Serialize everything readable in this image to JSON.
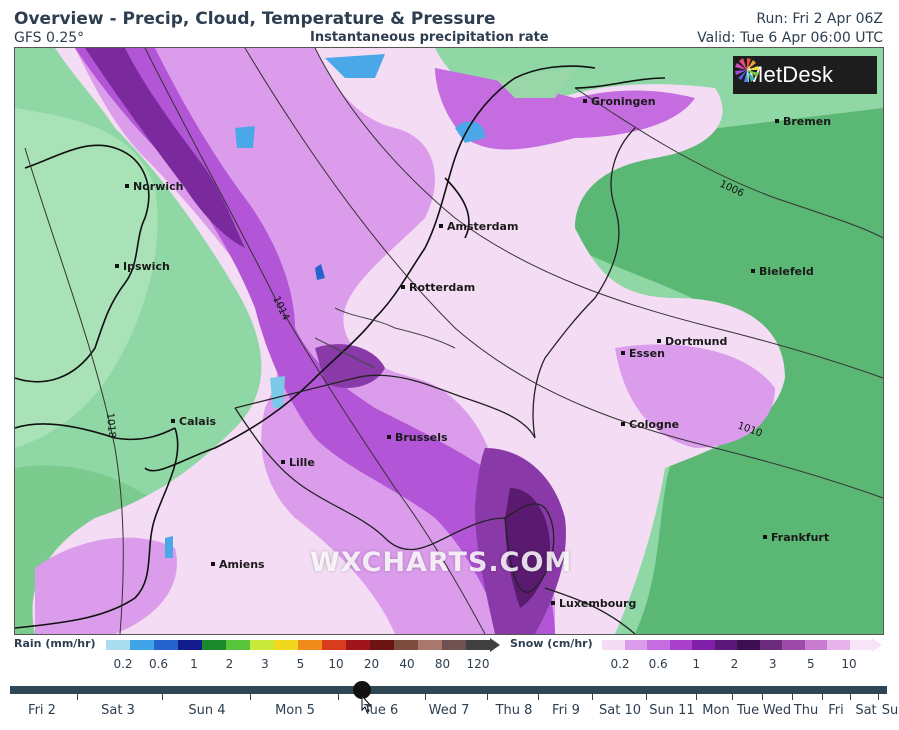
{
  "header": {
    "title": "Overview - Precip, Cloud, Temperature & Pressure",
    "model": "GFS 0.25°",
    "subtitle": "Instantaneous precipitation rate",
    "run": "Run: Fri 2 Apr 06Z",
    "valid": "Valid: Tue 6 Apr 06:00 UTC"
  },
  "logo": {
    "text": "MetDesk",
    "icon": "sunburst-icon"
  },
  "watermark": "WXCHARTS.COM",
  "map": {
    "cities": [
      "Groningen",
      "Bremen",
      "Norwich",
      "Amsterdam",
      "Ipswich",
      "Rotterdam",
      "Bielefeld",
      "Dortmund",
      "Essen",
      "Calais",
      "Cologne",
      "Brussels",
      "Lille",
      "Frankfurt",
      "Amiens",
      "Luxembourg"
    ],
    "isobars": [
      "1006",
      "1014",
      "1010",
      "1018"
    ]
  },
  "legend": {
    "rain_label": "Rain (mm/hr)",
    "rain_ticks": [
      "0.2",
      "0.6",
      "1",
      "2",
      "3",
      "5",
      "10",
      "20",
      "40",
      "80",
      "120"
    ],
    "rain_colors": [
      "#a9dcef",
      "#3fa5e8",
      "#2464cc",
      "#121c8c",
      "#1c8a2c",
      "#58c43c",
      "#c8e83c",
      "#f0d81c",
      "#f08c1c",
      "#d83c1c",
      "#a0141c",
      "#6c1414",
      "#7c4c3c",
      "#a8786c",
      "#705050",
      "#404040"
    ],
    "snow_label": "Snow (cm/hr)",
    "snow_ticks": [
      "0.2",
      "0.6",
      "1",
      "2",
      "3",
      "5",
      "10"
    ],
    "snow_colors": [
      "#f4dcf4",
      "#dc9cec",
      "#c46ce0",
      "#a840cc",
      "#8020a8",
      "#5c1878",
      "#3c1050",
      "#6c2c7c",
      "#9c4ca8",
      "#c87cd0",
      "#e8b4ec",
      "#f8e4f8"
    ]
  },
  "timeline": {
    "days": [
      "Fri 2",
      "Sat 3",
      "Sun 4",
      "Mon 5",
      "Tue 6",
      "Wed 7",
      "Thu 8",
      "Fri 9",
      "Sat 10",
      "Sun 11",
      "Mon",
      "Tue",
      "Wed",
      "Thu",
      "Fri",
      "Sat",
      "Su"
    ],
    "selected": "Tue 6"
  }
}
